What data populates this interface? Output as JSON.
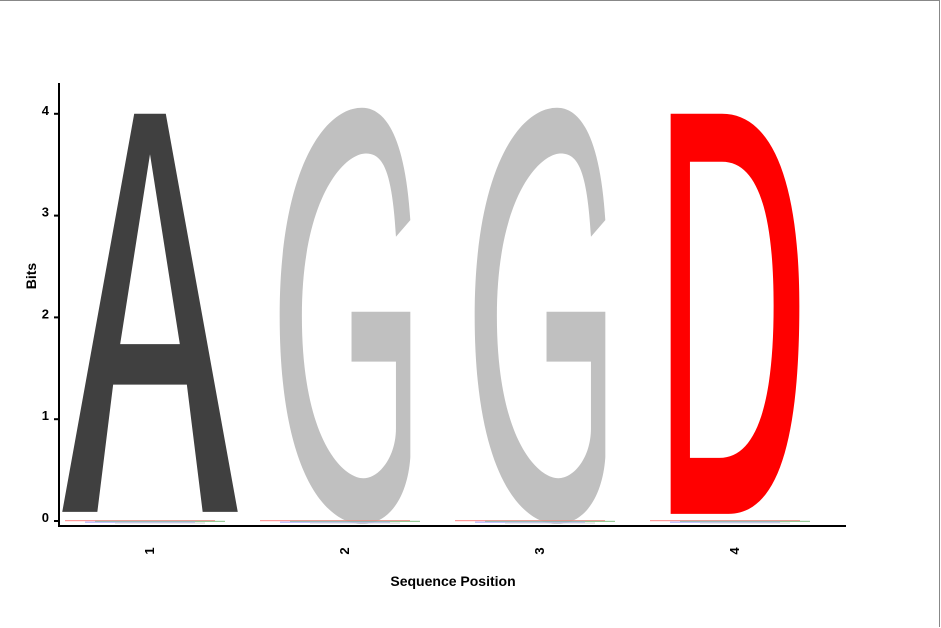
{
  "chart_data": {
    "type": "sequence-logo",
    "xlabel": "Sequence Position",
    "ylabel": "Bits",
    "ylim": [
      0,
      4.3
    ],
    "yticks": [
      0,
      1,
      2,
      3,
      4
    ],
    "positions": [
      {
        "label": "1",
        "letter": "A",
        "bits": 4.0,
        "color": "#404040"
      },
      {
        "label": "2",
        "letter": "G",
        "bits": 4.0,
        "color": "#c0c0c0"
      },
      {
        "label": "3",
        "letter": "G",
        "bits": 4.0,
        "color": "#c0c0c0"
      },
      {
        "label": "4",
        "letter": "D",
        "bits": 4.0,
        "color": "#ff0000"
      }
    ],
    "grid": false
  }
}
